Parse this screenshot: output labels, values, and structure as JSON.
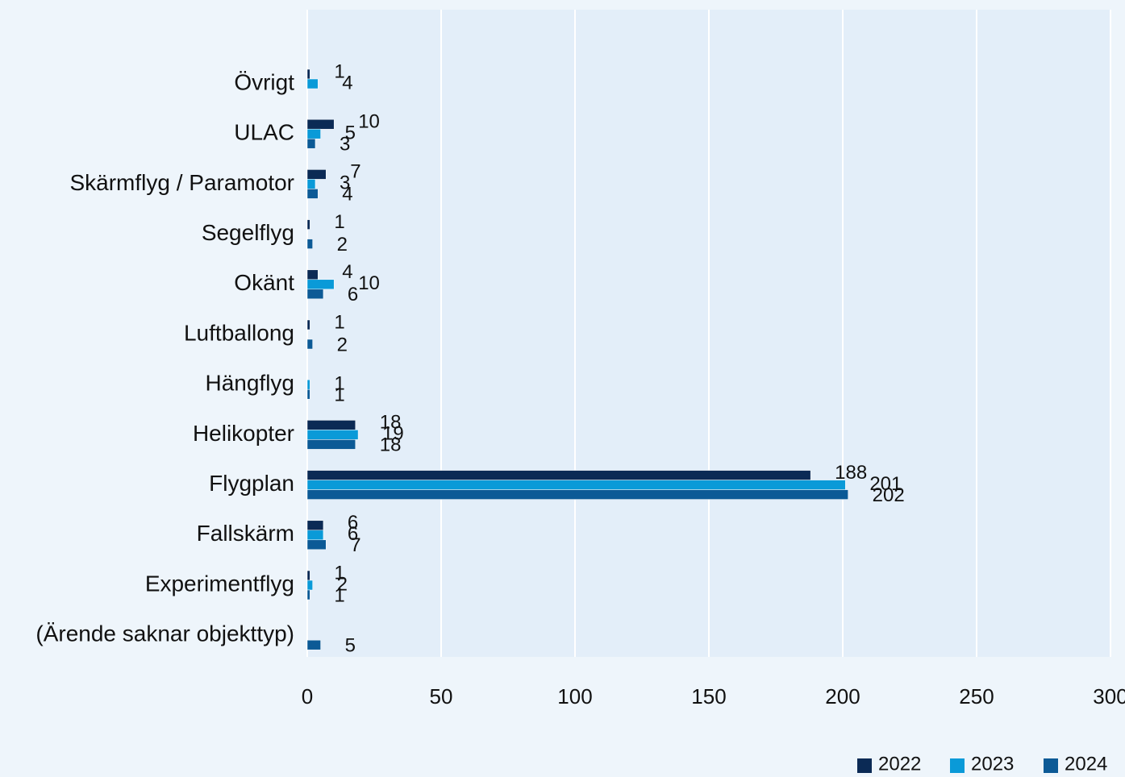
{
  "chart_data": {
    "type": "bar",
    "orientation": "horizontal",
    "categories": [
      "Övrigt",
      "ULAC",
      "Skärmflyg / Paramotor",
      "Segelflyg",
      "Okänt",
      "Luftballong",
      "Hängflyg",
      "Helikopter",
      "Flygplan",
      "Fallskärm",
      "Experimentflyg",
      "(Ärende saknar objekttyp)"
    ],
    "series": [
      {
        "name": "2022",
        "color": "#0b2a55",
        "values": [
          1,
          10,
          7,
          1,
          4,
          1,
          null,
          18,
          188,
          6,
          1,
          null
        ]
      },
      {
        "name": "2023",
        "color": "#0a9ad8",
        "values": [
          4,
          5,
          3,
          null,
          10,
          null,
          1,
          19,
          201,
          6,
          2,
          null
        ]
      },
      {
        "name": "2024",
        "color": "#0c5a96",
        "values": [
          null,
          3,
          4,
          2,
          6,
          2,
          1,
          18,
          202,
          7,
          1,
          5
        ]
      }
    ],
    "xlim": [
      0,
      300
    ],
    "xticks": [
      0,
      50,
      100,
      150,
      200,
      250,
      300
    ],
    "grid": true,
    "legend": "bottom-right"
  }
}
